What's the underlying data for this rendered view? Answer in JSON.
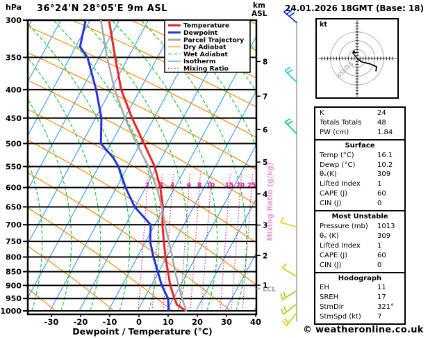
{
  "header": {
    "pressure_unit": "hPa",
    "title": "36°24'N 28°05'E 9m ASL",
    "altitude_unit": "km",
    "altitude_ref": "ASL",
    "datetime": "24.01.2026 18GMT (Base: 18)"
  },
  "footer": {
    "credit": "© weatheronline.co.uk"
  },
  "legend": [
    {
      "label": "Temperature",
      "color": "#ee2222",
      "dash": "",
      "w": 3
    },
    {
      "label": "Dewpoint",
      "color": "#2233dd",
      "dash": "",
      "w": 3
    },
    {
      "label": "Parcel Trajectory",
      "color": "#a8a8a8",
      "dash": "",
      "w": 3
    },
    {
      "label": "Dry Adiabat",
      "color": "#ff8800",
      "dash": "",
      "w": 1.2
    },
    {
      "label": "Wet Adiabat",
      "color": "#22cc44",
      "dash": "5 3",
      "w": 1.2
    },
    {
      "label": "Isotherm",
      "color": "#3aa0ff",
      "dash": "",
      "w": 1.2
    },
    {
      "label": "Mixing Ratio",
      "color": "#ee1199",
      "dash": "1.5 3",
      "w": 1.2
    }
  ],
  "chart_data": {
    "type": "skewt-log-p",
    "pressure_axis": {
      "unit": "hPa",
      "ticks": [
        300,
        350,
        400,
        450,
        500,
        550,
        600,
        650,
        700,
        750,
        800,
        850,
        900,
        950,
        1000
      ],
      "range": [
        300,
        1000
      ]
    },
    "temp_axis": {
      "label": "Dewpoint / Temperature (°C)",
      "ticks": [
        -30,
        -20,
        -10,
        0,
        10,
        20,
        30,
        40
      ],
      "range": [
        -38,
        40
      ]
    },
    "km_axis": {
      "ticks": [
        8,
        7,
        6,
        5,
        4,
        3,
        2,
        1
      ]
    },
    "mixing_ratio": {
      "label": "Mixing Ratio (g/kg)",
      "values": [
        2,
        3,
        4,
        6,
        8,
        10,
        15,
        20,
        25
      ]
    },
    "lcl": {
      "label": "LCL",
      "pressure": 913
    },
    "series": [
      {
        "name": "Temperature",
        "color": "#ee2222",
        "width": 3,
        "points": [
          [
            300,
            -64
          ],
          [
            350,
            -55
          ],
          [
            400,
            -47
          ],
          [
            450,
            -38
          ],
          [
            500,
            -29.2
          ],
          [
            550,
            -21.3
          ],
          [
            600,
            -15.5
          ],
          [
            650,
            -11
          ],
          [
            700,
            -7.9
          ],
          [
            750,
            -4.3
          ],
          [
            800,
            -0.9
          ],
          [
            850,
            2.7
          ],
          [
            900,
            6
          ],
          [
            950,
            9.9
          ],
          [
            975,
            11.9
          ],
          [
            1000,
            16.1
          ]
        ]
      },
      {
        "name": "Dewpoint",
        "color": "#2233dd",
        "width": 3,
        "points": [
          [
            300,
            -72
          ],
          [
            335,
            -69
          ],
          [
            350,
            -64.5
          ],
          [
            400,
            -55.6
          ],
          [
            450,
            -48.5
          ],
          [
            500,
            -44
          ],
          [
            530,
            -37.2
          ],
          [
            550,
            -33.7
          ],
          [
            600,
            -27.4
          ],
          [
            650,
            -20.7
          ],
          [
            700,
            -11.9
          ],
          [
            750,
            -9
          ],
          [
            800,
            -5
          ],
          [
            850,
            -0.8
          ],
          [
            900,
            3.1
          ],
          [
            950,
            7.7
          ],
          [
            1000,
            10.2
          ]
        ]
      },
      {
        "name": "Parcel Trajectory",
        "color": "#a8a8a8",
        "width": 2.6,
        "points": [
          [
            300,
            -66.8
          ],
          [
            350,
            -57.8
          ],
          [
            400,
            -49.2
          ],
          [
            450,
            -40.4
          ],
          [
            500,
            -31.8
          ],
          [
            550,
            -23.4
          ],
          [
            600,
            -16.7
          ],
          [
            650,
            -11.4
          ],
          [
            700,
            -7
          ],
          [
            750,
            -2.6
          ],
          [
            800,
            1.5
          ],
          [
            850,
            5.1
          ],
          [
            900,
            8.9
          ],
          [
            950,
            12.5
          ],
          [
            1000,
            16.2
          ]
        ]
      }
    ],
    "wind_barbs": [
      {
        "p": 303,
        "color": "#0022ee",
        "angle": 140,
        "ticks": 3
      },
      {
        "p": 388,
        "color": "#00cccc",
        "angle": 135,
        "ticks": 2
      },
      {
        "p": 480,
        "color": "#00cc66",
        "angle": 135,
        "ticks": 2
      },
      {
        "p": 706,
        "color": "#d8d800",
        "angle": 165,
        "ticks": 1
      },
      {
        "p": 867,
        "color": "#c8cc00",
        "angle": 150,
        "ticks": 1
      },
      {
        "p": 920,
        "color": "#99d400",
        "angle": 212,
        "ticks": 2
      },
      {
        "p": 972,
        "color": "#99d400",
        "angle": 218,
        "ticks": 2
      },
      {
        "p": 1008,
        "color": "#d4cc00",
        "angle": 232,
        "ticks": 2
      }
    ]
  },
  "hodograph": {
    "unit_label": "kt",
    "ring_labels": [
      15,
      30,
      45
    ],
    "trace_kt": [
      [
        0,
        0
      ],
      [
        8,
        -6
      ],
      [
        21,
        -9
      ],
      [
        33,
        -14
      ],
      [
        32,
        -22
      ]
    ],
    "storm_motion": {
      "dir": 321,
      "spd": 7
    }
  },
  "table": {
    "sections": [
      {
        "header": null,
        "rows": [
          [
            "K",
            "24"
          ],
          [
            "Totals Totals",
            "48"
          ],
          [
            "PW (cm)",
            "1.84"
          ]
        ]
      },
      {
        "header": "Surface",
        "rows": [
          [
            "Temp (°C)",
            "16.1"
          ],
          [
            "Dewp (°C)",
            "10.2"
          ],
          [
            "θₑ(K)",
            "309"
          ],
          [
            "Lifted Index",
            "1"
          ],
          [
            "CAPE (J)",
            "60"
          ],
          [
            "CIN (J)",
            "0"
          ]
        ]
      },
      {
        "header": "Most Unstable",
        "rows": [
          [
            "Pressure (mb)",
            "1013"
          ],
          [
            "θₑ (K)",
            "309"
          ],
          [
            "Lifted Index",
            "1"
          ],
          [
            "CAPE (J)",
            "60"
          ],
          [
            "CIN (J)",
            "0"
          ]
        ]
      },
      {
        "header": "Hodograph",
        "rows": [
          [
            "EH",
            "11"
          ],
          [
            "SREH",
            "17"
          ],
          [
            "StmDir",
            "321°"
          ],
          [
            "StmSpd (kt)",
            "7"
          ]
        ]
      }
    ]
  }
}
